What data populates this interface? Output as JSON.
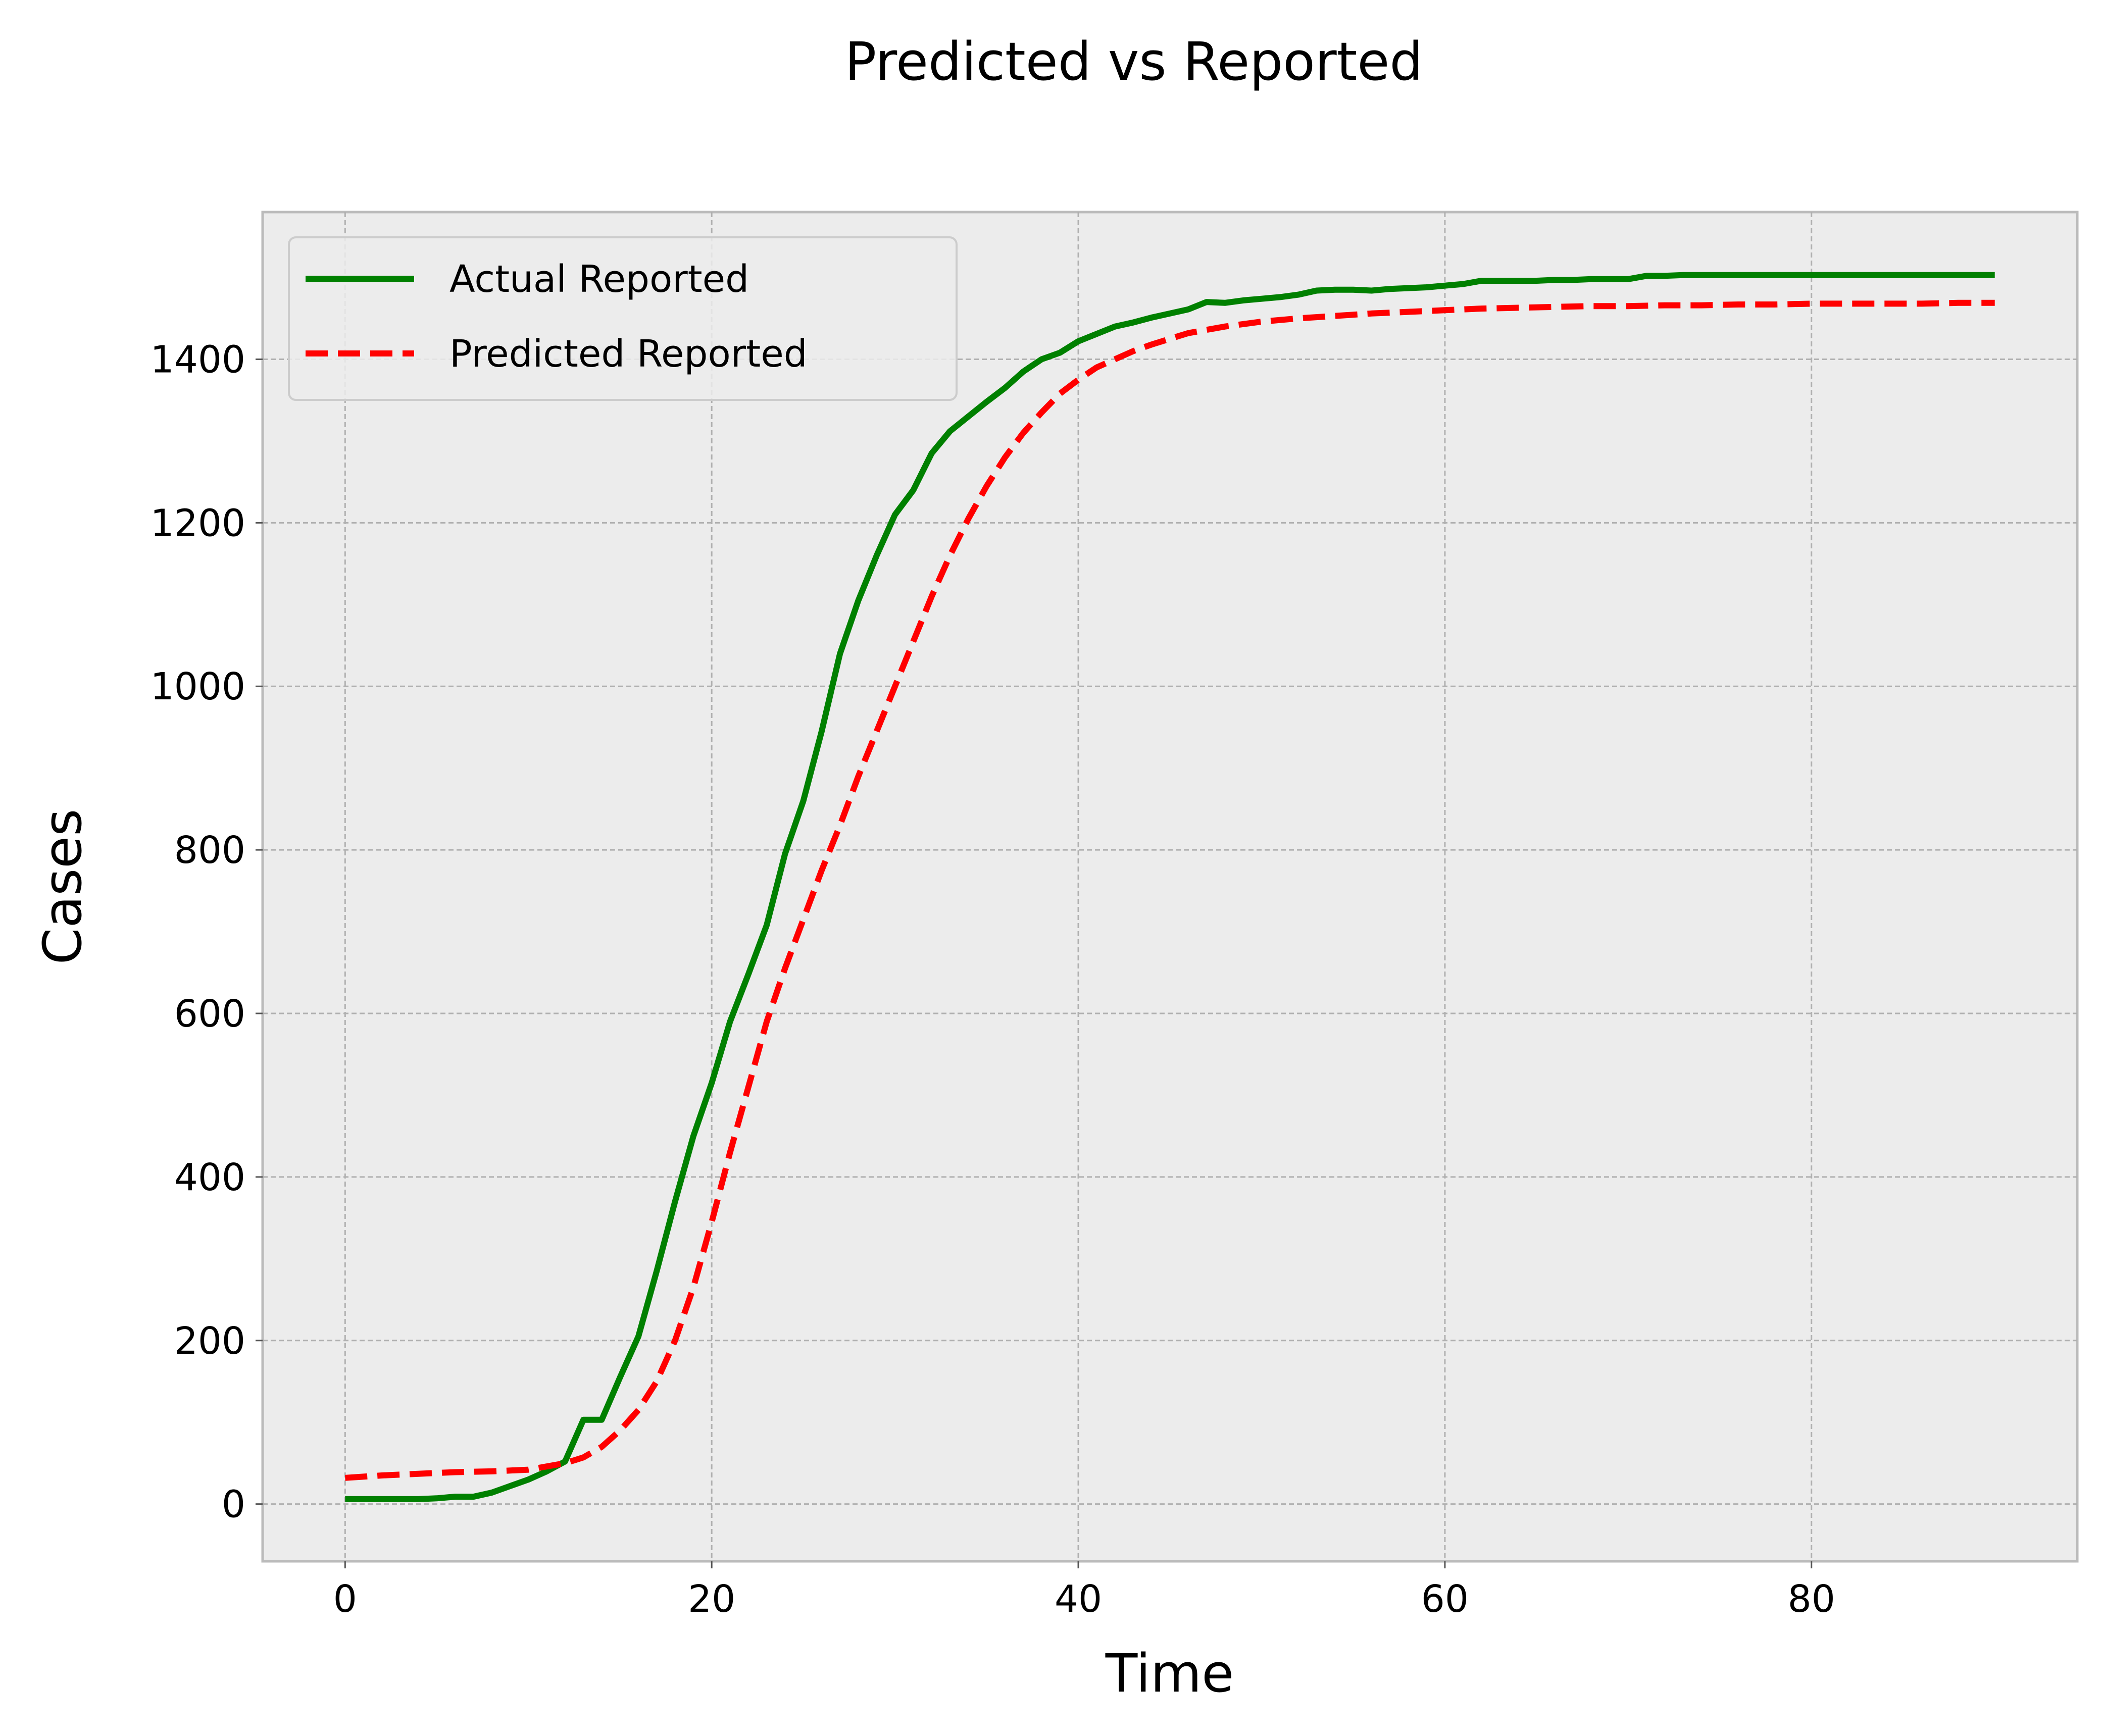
{
  "chart_data": {
    "type": "line",
    "title": "Predicted vs Reported",
    "xlabel": "Time",
    "ylabel": "Cases",
    "xlim": [
      -4.5,
      94.5
    ],
    "ylim": [
      -70,
      1580
    ],
    "xticks": [
      0,
      20,
      40,
      60,
      80
    ],
    "yticks": [
      0,
      200,
      400,
      600,
      800,
      1000,
      1200,
      1400
    ],
    "grid": true,
    "legend_position": "top-left",
    "background_color": "#ececec",
    "series": [
      {
        "name": "Actual Reported",
        "color": "#008000",
        "style": "solid",
        "x": [
          0,
          1,
          2,
          3,
          4,
          5,
          6,
          7,
          8,
          9,
          10,
          11,
          12,
          13,
          14,
          15,
          16,
          17,
          18,
          19,
          20,
          21,
          22,
          23,
          24,
          25,
          26,
          27,
          28,
          29,
          30,
          31,
          32,
          33,
          34,
          35,
          36,
          37,
          38,
          39,
          40,
          41,
          42,
          43,
          44,
          45,
          46,
          47,
          48,
          49,
          50,
          51,
          52,
          53,
          54,
          55,
          56,
          57,
          58,
          59,
          60,
          61,
          62,
          63,
          64,
          65,
          66,
          67,
          68,
          69,
          70,
          71,
          72,
          73,
          74,
          75,
          76,
          77,
          78,
          79,
          80,
          81,
          82,
          83,
          84,
          85,
          86,
          87,
          88,
          89,
          90
        ],
        "values": [
          6,
          6,
          6,
          6,
          6,
          7,
          9,
          9,
          14,
          22,
          30,
          40,
          52,
          103,
          103,
          155,
          205,
          285,
          370,
          450,
          515,
          590,
          648,
          708,
          795,
          860,
          945,
          1040,
          1105,
          1160,
          1210,
          1240,
          1285,
          1312,
          1330,
          1348,
          1365,
          1385,
          1400,
          1408,
          1422,
          1431,
          1440,
          1445,
          1451,
          1456,
          1461,
          1470,
          1469,
          1472,
          1474,
          1476,
          1479,
          1484,
          1485,
          1485,
          1484,
          1486,
          1487,
          1488,
          1490,
          1492,
          1496,
          1496,
          1496,
          1496,
          1497,
          1497,
          1498,
          1498,
          1498,
          1502,
          1502,
          1503,
          1503,
          1503,
          1503,
          1503,
          1503,
          1503,
          1503,
          1503,
          1503,
          1503,
          1503,
          1503,
          1503,
          1503,
          1503,
          1503,
          1503
        ]
      },
      {
        "name": "Predicted Reported",
        "color": "#ff0000",
        "style": "dashed",
        "x": [
          0,
          2,
          4,
          6,
          8,
          10,
          12,
          13,
          14,
          15,
          16,
          17,
          18,
          19,
          20,
          21,
          22,
          23,
          24,
          25,
          26,
          27,
          28,
          29,
          30,
          31,
          32,
          33,
          34,
          35,
          36,
          37,
          38,
          39,
          40,
          41,
          42,
          43,
          44,
          45,
          46,
          48,
          50,
          52,
          54,
          56,
          58,
          60,
          62,
          64,
          66,
          68,
          70,
          72,
          74,
          76,
          78,
          80,
          82,
          84,
          86,
          88,
          90
        ],
        "values": [
          32,
          35,
          37,
          39,
          40,
          42,
          50,
          57,
          70,
          90,
          115,
          150,
          200,
          265,
          345,
          430,
          510,
          590,
          655,
          715,
          775,
          830,
          890,
          945,
          1000,
          1055,
          1110,
          1160,
          1205,
          1245,
          1280,
          1310,
          1335,
          1358,
          1375,
          1390,
          1400,
          1410,
          1418,
          1425,
          1432,
          1440,
          1446,
          1450,
          1453,
          1456,
          1458,
          1460,
          1462,
          1463,
          1464,
          1465,
          1465,
          1466,
          1466,
          1467,
          1467,
          1468,
          1468,
          1468,
          1468,
          1469,
          1469
        ]
      }
    ]
  }
}
